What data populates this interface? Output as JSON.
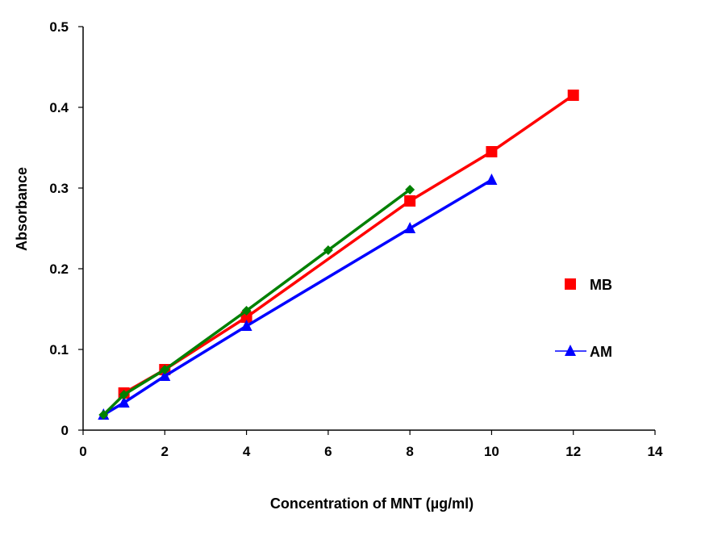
{
  "chart_data": {
    "type": "line",
    "title": "",
    "xlabel": "Concentration of MNT (µg/ml)",
    "ylabel": "Absorbance",
    "xlim": [
      0,
      14
    ],
    "ylim": [
      0,
      0.5
    ],
    "xticks": [
      0,
      2,
      4,
      6,
      8,
      10,
      12,
      14
    ],
    "yticks": [
      0,
      0.1,
      0.2,
      0.3,
      0.4,
      0.5
    ],
    "xtick_labels": [
      "0",
      "2",
      "4",
      "6",
      "8",
      "10",
      "12",
      "14"
    ],
    "ytick_labels": [
      "0",
      "0.1",
      "0.2",
      "0.3",
      "0.4",
      "0.5"
    ],
    "grid": false,
    "legend_position": "right",
    "series": [
      {
        "name": "MB",
        "color": "#ff0000",
        "marker": "square",
        "show_in_legend": true,
        "x": [
          1,
          2,
          4,
          8,
          10,
          12
        ],
        "y": [
          0.046,
          0.075,
          0.14,
          0.284,
          0.345,
          0.415
        ]
      },
      {
        "name": "AM",
        "color": "#0000ff",
        "marker": "triangle",
        "show_in_legend": true,
        "x": [
          0.5,
          1,
          2,
          4,
          8,
          10
        ],
        "y": [
          0.019,
          0.034,
          0.067,
          0.129,
          0.25,
          0.31
        ]
      },
      {
        "name": "",
        "color": "#008000",
        "marker": "diamond",
        "show_in_legend": false,
        "x": [
          0.5,
          1,
          2,
          4,
          6,
          8
        ],
        "y": [
          0.019,
          0.044,
          0.075,
          0.148,
          0.223,
          0.298
        ]
      }
    ]
  }
}
